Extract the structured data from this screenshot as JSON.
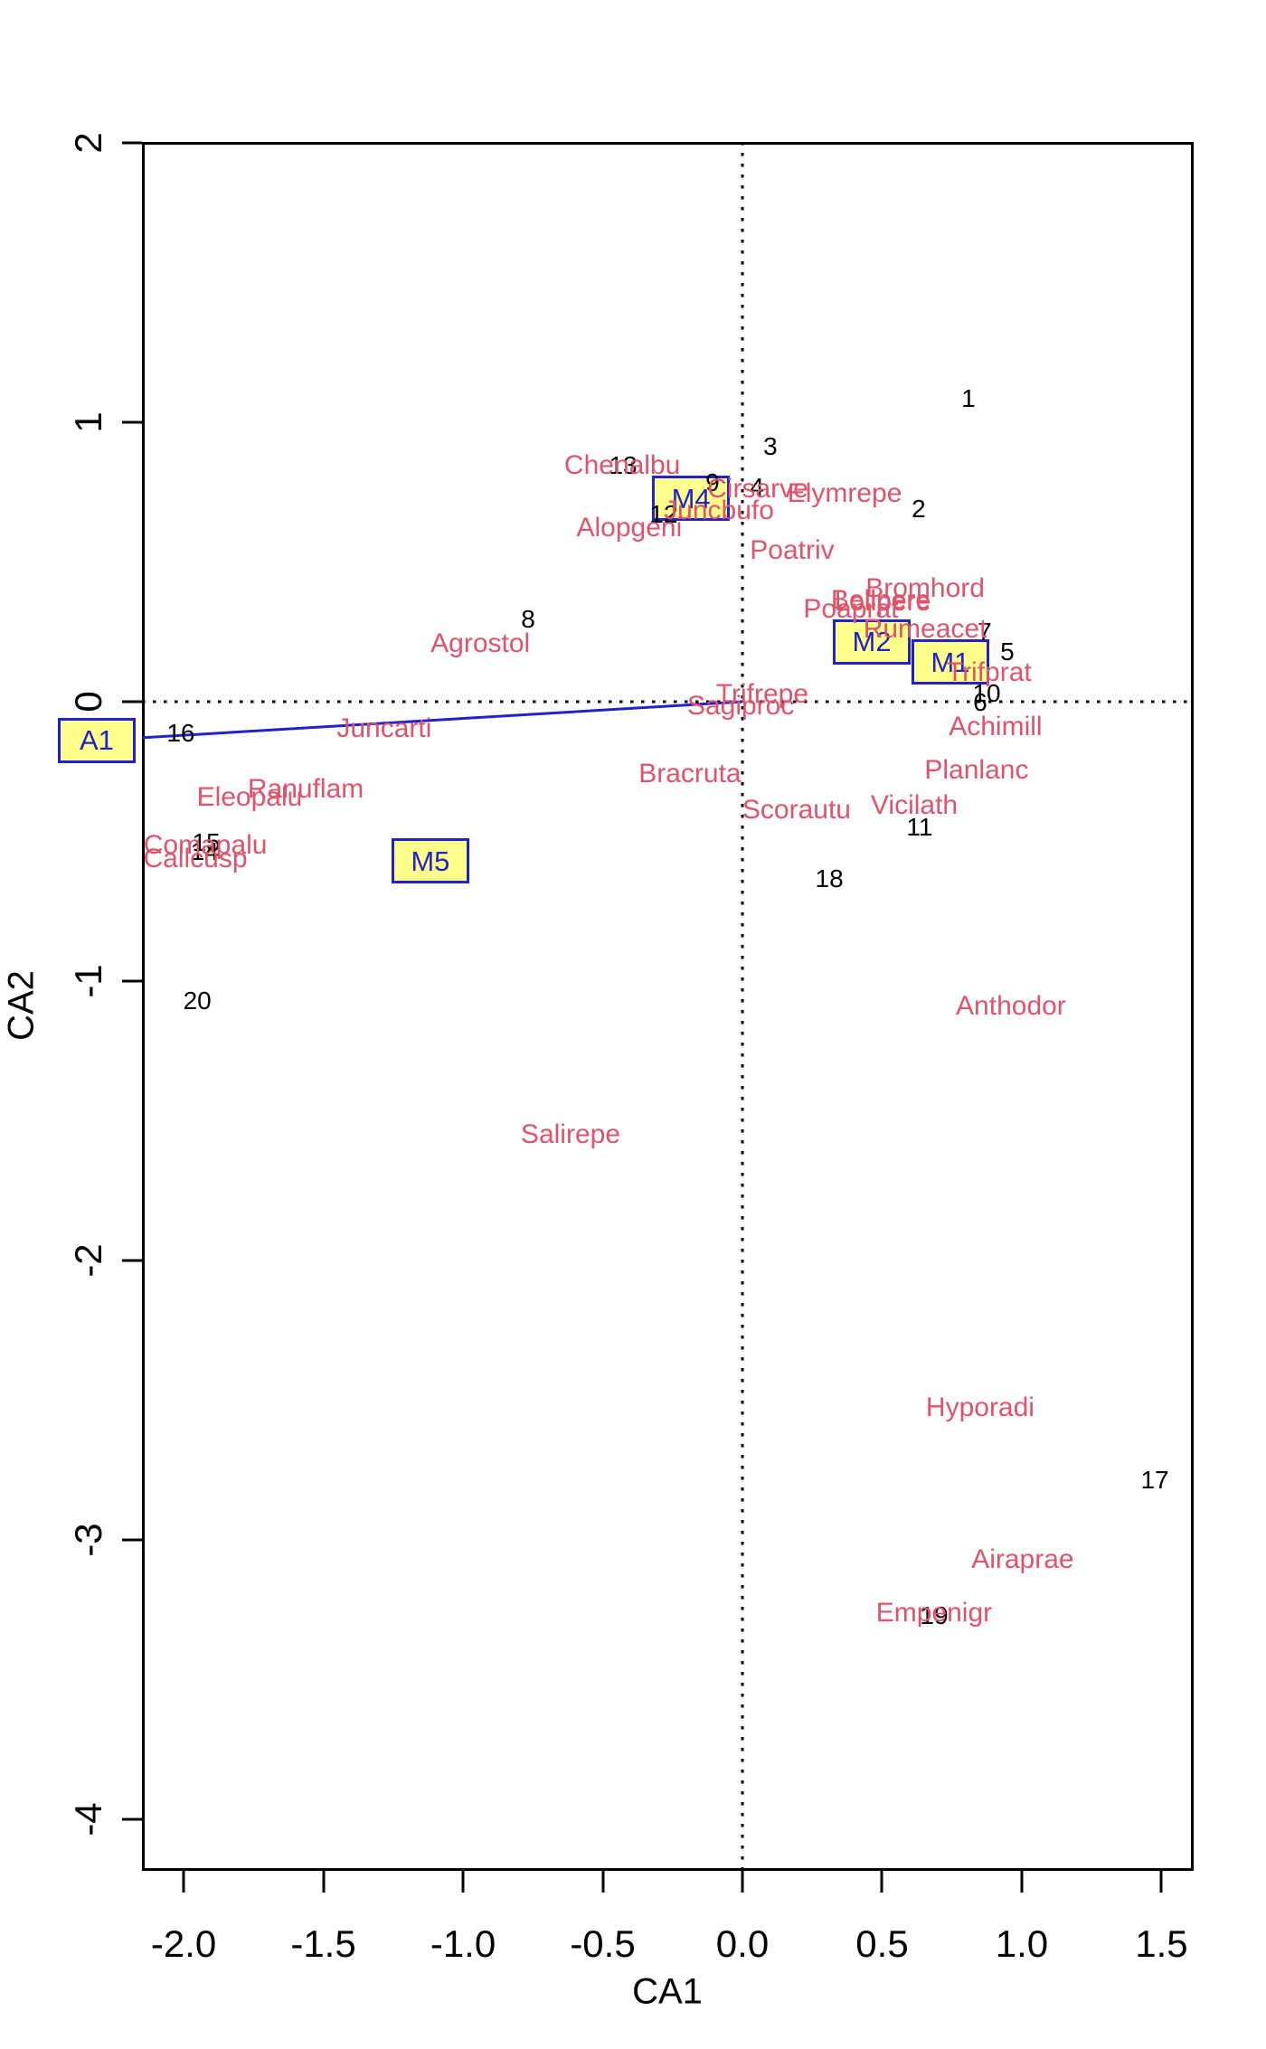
{
  "chart_data": {
    "type": "scatter",
    "title": "",
    "xlabel": "CA1",
    "ylabel": "CA2",
    "xlim": [
      -2.149,
      1.615
    ],
    "ylim": [
      -4.184,
      2.003
    ],
    "x_tick_values": [
      -2.0,
      -1.5,
      -1.0,
      -0.5,
      0.0,
      0.5,
      1.0,
      1.5
    ],
    "x_tick_labels": [
      "-2.0",
      "-1.5",
      "-1.0",
      "-0.5",
      "0.0",
      "0.5",
      "1.0",
      "1.5"
    ],
    "y_tick_values": [
      2,
      1,
      0,
      -1,
      -2,
      -3,
      -4
    ],
    "y_tick_labels": [
      "2",
      "1",
      "0",
      "-1",
      "-2",
      "-3",
      "-4"
    ],
    "grid": "none",
    "legend": "none",
    "reference_lines": [
      {
        "axis": "h",
        "value": 0,
        "style": "dotted"
      },
      {
        "axis": "v",
        "value": 0,
        "style": "dotted"
      }
    ],
    "series": [
      {
        "name": "sites",
        "kind": "text-points",
        "points": [
          {
            "label": "1",
            "x": 0.809,
            "y": 1.084
          },
          {
            "label": "2",
            "x": 0.631,
            "y": 0.689
          },
          {
            "label": "3",
            "x": 0.1,
            "y": 0.913
          },
          {
            "label": "4",
            "x": 0.052,
            "y": 0.767
          },
          {
            "label": "5",
            "x": 0.948,
            "y": 0.178
          },
          {
            "label": "6",
            "x": 0.851,
            "y": -0.003
          },
          {
            "label": "7",
            "x": 0.867,
            "y": 0.249
          },
          {
            "label": "8",
            "x": -0.767,
            "y": 0.294
          },
          {
            "label": "9",
            "x": -0.107,
            "y": 0.783
          },
          {
            "label": "10",
            "x": 0.874,
            "y": 0.029
          },
          {
            "label": "11",
            "x": 0.634,
            "y": -0.45
          },
          {
            "label": "12",
            "x": -0.282,
            "y": 0.67
          },
          {
            "label": "13",
            "x": -0.427,
            "y": 0.845
          },
          {
            "label": "14",
            "x": -1.925,
            "y": -0.537
          },
          {
            "label": "15",
            "x": -1.919,
            "y": -0.505
          },
          {
            "label": "16",
            "x": -2.01,
            "y": -0.113
          },
          {
            "label": "17",
            "x": 1.476,
            "y": -2.786
          },
          {
            "label": "18",
            "x": 0.311,
            "y": -0.634
          },
          {
            "label": "19",
            "x": 0.686,
            "y": -3.272
          },
          {
            "label": "20",
            "x": -1.951,
            "y": -1.071
          }
        ]
      },
      {
        "name": "species",
        "kind": "text-points",
        "points": [
          {
            "label": "Achimill",
            "x": 0.906,
            "y": -0.091
          },
          {
            "label": "Agrostol",
            "x": -0.938,
            "y": 0.207
          },
          {
            "label": "Airaprae",
            "x": 1.003,
            "y": -3.071
          },
          {
            "label": "Alopgeni",
            "x": -0.405,
            "y": 0.621
          },
          {
            "label": "Anthodor",
            "x": 0.961,
            "y": -1.091
          },
          {
            "label": "Bellpere",
            "x": 0.495,
            "y": 0.362
          },
          {
            "label": "Lolipere",
            "x": 0.502,
            "y": 0.356
          },
          {
            "label": "Bracruta",
            "x": -0.188,
            "y": -0.259
          },
          {
            "label": "Bromhord",
            "x": 0.654,
            "y": 0.405
          },
          {
            "label": "Callcusp",
            "x": -1.958,
            "y": -0.563
          },
          {
            "label": "Chenalbu",
            "x": -0.43,
            "y": 0.845
          },
          {
            "label": "Cirsarve",
            "x": 0.055,
            "y": 0.76
          },
          {
            "label": "Comapalu",
            "x": -1.922,
            "y": -0.515
          },
          {
            "label": "Eleopalu",
            "x": -1.764,
            "y": -0.343
          },
          {
            "label": "Elymrepe",
            "x": 0.366,
            "y": 0.744
          },
          {
            "label": "Empenigr",
            "x": 0.686,
            "y": -3.262
          },
          {
            "label": "Hyporadi",
            "x": 0.851,
            "y": -2.527
          },
          {
            "label": "Juncarti",
            "x": -1.282,
            "y": -0.097
          },
          {
            "label": "Juncbufo",
            "x": -0.084,
            "y": 0.683
          },
          {
            "label": "Planlanc",
            "x": 0.838,
            "y": -0.246
          },
          {
            "label": "Poaprat",
            "x": 0.388,
            "y": 0.33
          },
          {
            "label": "Poatriv",
            "x": 0.178,
            "y": 0.54
          },
          {
            "label": "Ranuflam",
            "x": -1.563,
            "y": -0.314
          },
          {
            "label": "Rumeacet",
            "x": 0.654,
            "y": 0.259
          },
          {
            "label": "Sagiproc",
            "x": -0.006,
            "y": -0.016
          },
          {
            "label": "Salirepe",
            "x": -0.615,
            "y": -1.55
          },
          {
            "label": "Scorautu",
            "x": 0.194,
            "y": -0.388
          },
          {
            "label": "Trifprat",
            "x": 0.883,
            "y": 0.104
          },
          {
            "label": "Trifrepe",
            "x": 0.071,
            "y": 0.026
          },
          {
            "label": "Vicilath",
            "x": 0.615,
            "y": -0.372
          }
        ]
      },
      {
        "name": "centroids",
        "kind": "boxed-labels",
        "points": [
          {
            "label": "A1",
            "x": -2.311,
            "y": -0.139
          },
          {
            "label": "M1",
            "x": 0.744,
            "y": 0.142
          },
          {
            "label": "M2",
            "x": 0.463,
            "y": 0.214
          },
          {
            "label": "M4",
            "x": -0.184,
            "y": 0.728
          },
          {
            "label": "M5",
            "x": -1.117,
            "y": -0.57
          }
        ]
      }
    ],
    "biplot_arrows": [
      {
        "label": "A1",
        "from": [
          0,
          0
        ],
        "to": [
          -2.149,
          -0.129
        ]
      }
    ]
  },
  "colors": {
    "background": "#FFFFFF",
    "axis": "#000000",
    "sites": "#000000",
    "species": "#DF536B",
    "centroid_box_fill": "#FFFF8C",
    "centroid_box_border": "#2222CC",
    "centroid_text": "#2222CC",
    "arrow": "#2222CC",
    "reference_line": "#000000"
  }
}
